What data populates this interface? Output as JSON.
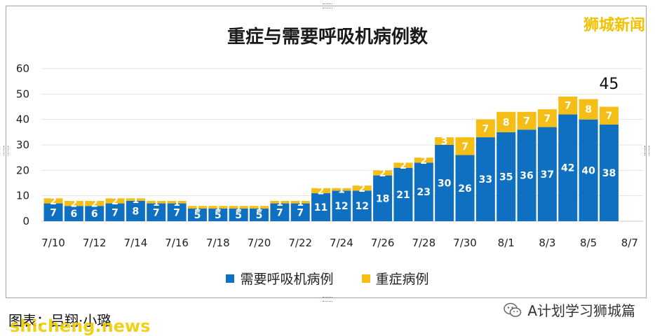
{
  "watermark": "狮城新闻",
  "caption": "图表：吕翔·小璐",
  "site_mark": "shicheng.news",
  "account": "A计划学习狮城篇",
  "icons": {
    "wechat": "wechat-icon"
  },
  "colors": {
    "primary": "#0f6fc0",
    "secondary": "#f5be16"
  },
  "chart_data": {
    "type": "bar",
    "stacked": true,
    "title": "重症与需要呼吸机病例数",
    "xlabel": "",
    "ylabel": "",
    "ylim": [
      0,
      60
    ],
    "yticks": [
      0,
      10,
      20,
      30,
      40,
      50,
      60
    ],
    "grid": true,
    "legend_position": "bottom",
    "categories": [
      "7/10",
      "7/11",
      "7/12",
      "7/13",
      "7/14",
      "7/15",
      "7/16",
      "7/17",
      "7/18",
      "7/19",
      "7/20",
      "7/21",
      "7/22",
      "7/23",
      "7/24",
      "7/25",
      "7/26",
      "7/27",
      "7/28",
      "7/29",
      "7/30",
      "7/31",
      "8/1",
      "8/2",
      "8/3",
      "8/4",
      "8/5",
      "8/6"
    ],
    "xtick_labels": [
      "7/10",
      "7/12",
      "7/14",
      "7/16",
      "7/18",
      "7/20",
      "7/22",
      "7/24",
      "7/26",
      "7/28",
      "7/30",
      "8/1",
      "8/3",
      "8/5",
      "8/7"
    ],
    "series": [
      {
        "name": "需要呼吸机病例",
        "color": "#0f6fc0",
        "values": [
          7,
          6,
          6,
          7,
          8,
          7,
          7,
          5,
          5,
          5,
          5,
          7,
          7,
          11,
          12,
          12,
          18,
          21,
          23,
          30,
          26,
          33,
          35,
          36,
          37,
          42,
          40,
          38
        ]
      },
      {
        "name": "重症病例",
        "color": "#f5be16",
        "values": [
          2,
          2,
          2,
          2,
          1,
          1,
          1,
          1,
          1,
          1,
          1,
          1,
          1,
          2,
          1,
          2,
          2,
          2,
          2,
          3,
          7,
          7,
          8,
          7,
          7,
          7,
          8,
          7
        ]
      }
    ],
    "annotation": {
      "category": "8/6",
      "text": "45"
    }
  }
}
